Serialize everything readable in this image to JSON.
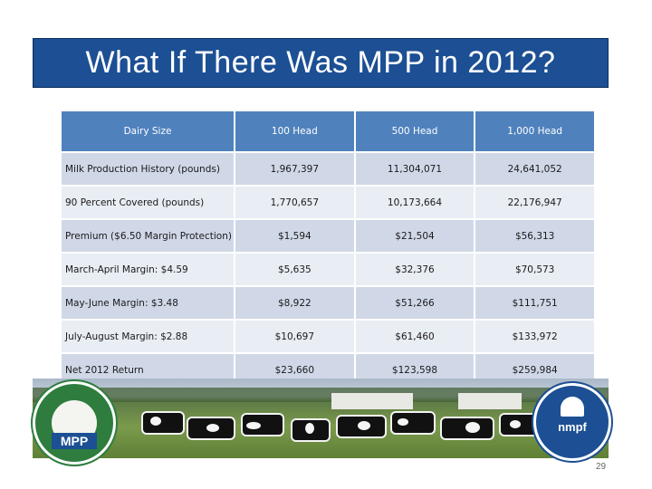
{
  "slide": {
    "title": "What If There Was MPP in 2012?",
    "page_number": "29"
  },
  "table": {
    "headers": [
      "Dairy Size",
      "100 Head",
      "500 Head",
      "1,000 Head"
    ],
    "rows": [
      [
        "Milk Production History (pounds)",
        "1,967,397",
        "11,304,071",
        "24,641,052"
      ],
      [
        "90 Percent Covered (pounds)",
        "1,770,657",
        "10,173,664",
        "22,176,947"
      ],
      [
        "Premium ($6.50 Margin Protection)",
        "$1,594",
        "$21,504",
        "$56,313"
      ],
      [
        "March-April Margin: $4.59",
        "$5,635",
        "$32,376",
        "$70,573"
      ],
      [
        "May-June Margin: $3.48",
        "$8,922",
        "$51,266",
        "$111,751"
      ],
      [
        "July-August Margin: $2.88",
        "$10,697",
        "$61,460",
        "$133,972"
      ],
      [
        "Net 2012 Return",
        "$23,660",
        "$123,598",
        "$259,984"
      ]
    ]
  },
  "logos": {
    "left": {
      "icon": "margin-protection-program-logo",
      "text": "MPP"
    },
    "right": {
      "icon": "nmpf-capitol-logo",
      "text": "nmpf"
    }
  },
  "colors": {
    "title_bar": "#1c4f93",
    "header": "#4f81bd",
    "row_odd": "#d0d8e8",
    "row_even": "#e9edf4"
  }
}
